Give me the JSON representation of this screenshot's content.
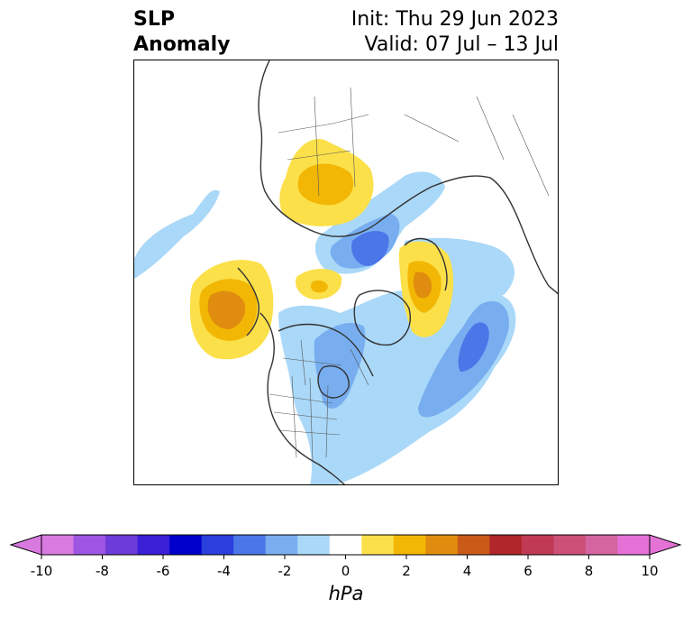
{
  "header": {
    "title_line1": "SLP",
    "title_line2": "Anomaly",
    "init": "Init: Thu 29 Jun 2023",
    "valid": "Valid: 07 Jul – 13 Jul"
  },
  "colorbar": {
    "units": "hPa",
    "ticks": [
      "-10",
      "-8",
      "-6",
      "-4",
      "-2",
      "0",
      "2",
      "4",
      "6",
      "8",
      "10"
    ],
    "colors": [
      "#d97ae0",
      "#9d55e2",
      "#6c3bd8",
      "#3a1fd6",
      "#0000cc",
      "#2a3fdc",
      "#4a76e8",
      "#78aef0",
      "#aad8f8",
      "#ffffff",
      "#fbe04a",
      "#f2b705",
      "#e08d0f",
      "#c95a17",
      "#b0262a",
      "#c13a55",
      "#cc5078",
      "#d565a0",
      "#e472d6"
    ],
    "underflow_color": "#d97ae0",
    "overflow_color": "#e472d6"
  },
  "map": {
    "projection": "north-polar-stereographic",
    "field": "SLP anomaly",
    "anomaly_features": [
      {
        "name": "positive-anomaly-siberia",
        "level": 2
      },
      {
        "name": "positive-anomaly-north-pacific",
        "level": 4
      },
      {
        "name": "positive-anomaly-barents",
        "level": 4
      },
      {
        "name": "positive-anomaly-arctic",
        "level": 2
      },
      {
        "name": "negative-anomaly-east-siberian-sea",
        "level": -4
      },
      {
        "name": "negative-anomaly-north-atlantic",
        "level": -4
      },
      {
        "name": "negative-anomaly-north-america",
        "level": -2
      },
      {
        "name": "negative-anomaly-pacific",
        "level": -1
      }
    ]
  }
}
